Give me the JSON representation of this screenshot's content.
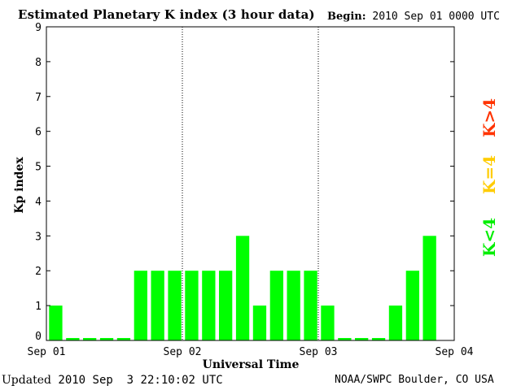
{
  "header": {
    "title": "Estimated Planetary K index (3 hour data)",
    "begin_label": "Begin:",
    "begin_value": "2010 Sep 01 0000 UTC"
  },
  "footer": {
    "updated_label": "Updated",
    "updated_value": "2010 Sep  3 22:10:02 UTC",
    "source": "NOAA/SWPC Boulder, CO USA"
  },
  "legend": {
    "high": "K>4",
    "equal": "K=4",
    "low": "K<4",
    "colors": {
      "high": "#ff3300",
      "equal": "#ffcc00",
      "low": "#00ee00"
    }
  },
  "chart_data": {
    "type": "bar",
    "xlabel": "Universal Time",
    "ylabel": "Kp index",
    "ylim": [
      0,
      9
    ],
    "yticks": [
      "0",
      "1",
      "2",
      "3",
      "4",
      "5",
      "6",
      "7",
      "8",
      "9"
    ],
    "xticks": [
      "Sep 01",
      "Sep 02",
      "Sep 03",
      "Sep 04"
    ],
    "x_range_days": [
      0,
      3
    ],
    "bars_per_day": 8,
    "values": [
      1,
      0,
      0,
      0,
      0,
      2,
      2,
      2,
      2,
      2,
      2,
      3,
      1,
      2,
      2,
      2,
      1,
      0,
      0,
      0,
      1,
      2,
      3
    ],
    "bar_color": "#00ff00",
    "day_separators": "dotted"
  }
}
